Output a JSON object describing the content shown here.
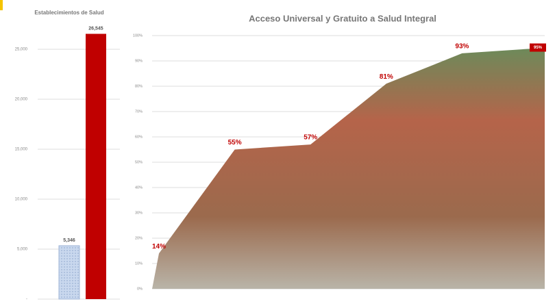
{
  "chart_data": [
    {
      "type": "bar",
      "title": "Establecimientos de Salud",
      "categories": [
        null,
        null
      ],
      "series": [
        {
          "name": null,
          "colors": [
            "#c9d8ee",
            "#c00000"
          ],
          "values": [
            5346,
            26545
          ],
          "value_labels": [
            "5,346",
            "26,545"
          ]
        }
      ],
      "ylim": [
        0,
        27500
      ],
      "yticks": [
        {
          "value": 0,
          "label": "-"
        },
        {
          "value": 5000,
          "label": "5,000"
        },
        {
          "value": 10000,
          "label": "10,000"
        },
        {
          "value": 15000,
          "label": "15,000"
        },
        {
          "value": 20000,
          "label": "20,000"
        },
        {
          "value": 25000,
          "label": "25,000"
        }
      ],
      "grid": true
    },
    {
      "type": "area",
      "title": "Acceso Universal y Gratuito a Salud Integral",
      "categories": [
        null,
        null,
        null,
        null,
        null,
        null
      ],
      "values": [
        14,
        55,
        57,
        81,
        93,
        95
      ],
      "value_labels": [
        "14%",
        "55%",
        "57%",
        "81%",
        "93%",
        "95%"
      ],
      "color": "#9a5a3c",
      "ylim": [
        0,
        100
      ],
      "yticks": [
        {
          "value": 0,
          "label": "0%"
        },
        {
          "value": 10,
          "label": "10%"
        },
        {
          "value": 20,
          "label": "20%"
        },
        {
          "value": 30,
          "label": "30%"
        },
        {
          "value": 40,
          "label": "40%"
        },
        {
          "value": 50,
          "label": "50%"
        },
        {
          "value": 60,
          "label": "60%"
        },
        {
          "value": 70,
          "label": "70%"
        },
        {
          "value": 80,
          "label": "80%"
        },
        {
          "value": 90,
          "label": "90%"
        },
        {
          "value": 100,
          "label": "100%"
        }
      ],
      "grid": true
    }
  ]
}
